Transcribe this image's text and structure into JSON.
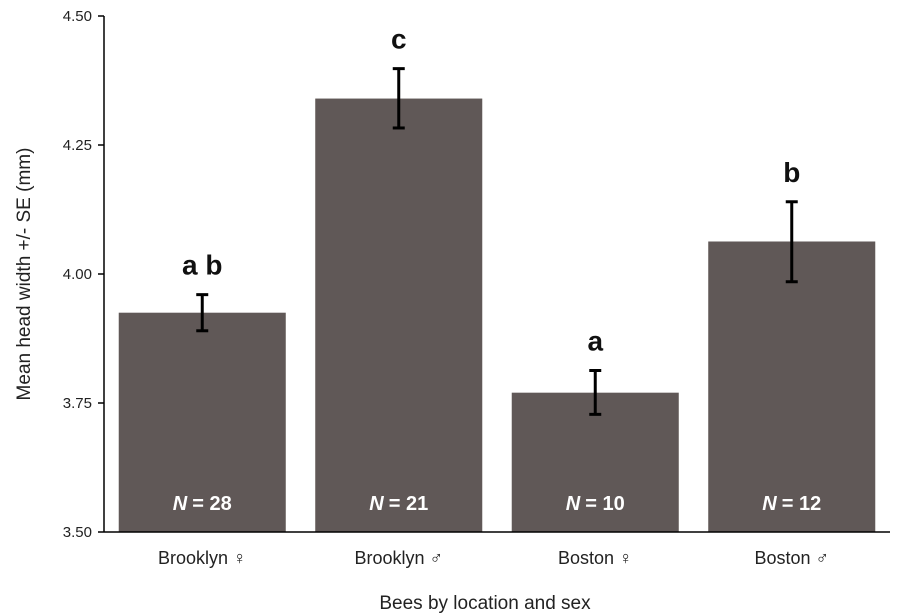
{
  "chart_data": {
    "type": "bar",
    "categories": [
      "Brooklyn ♀",
      "Brooklyn ♂",
      "Boston ♀",
      "Boston ♂"
    ],
    "values": [
      3.925,
      4.34,
      3.77,
      4.063
    ],
    "error_low": [
      3.89,
      4.283,
      3.728,
      3.985
    ],
    "error_high": [
      3.96,
      4.398,
      3.813,
      4.14
    ],
    "significance_labels": [
      "a b",
      "c",
      "a",
      "b"
    ],
    "n_prefix": "N",
    "n_values": [
      "= 28",
      "= 21",
      "= 10",
      "= 12"
    ],
    "xlabel": "Bees by location and sex",
    "ylabel": "Mean head width +/- SE (mm)",
    "ylim": [
      3.5,
      4.5
    ],
    "yticks": [
      "3.50",
      "3.75",
      "4.00",
      "4.25",
      "4.50"
    ],
    "grid": false,
    "colors": {
      "bar": "#605857",
      "error_bar": "#000000"
    }
  }
}
